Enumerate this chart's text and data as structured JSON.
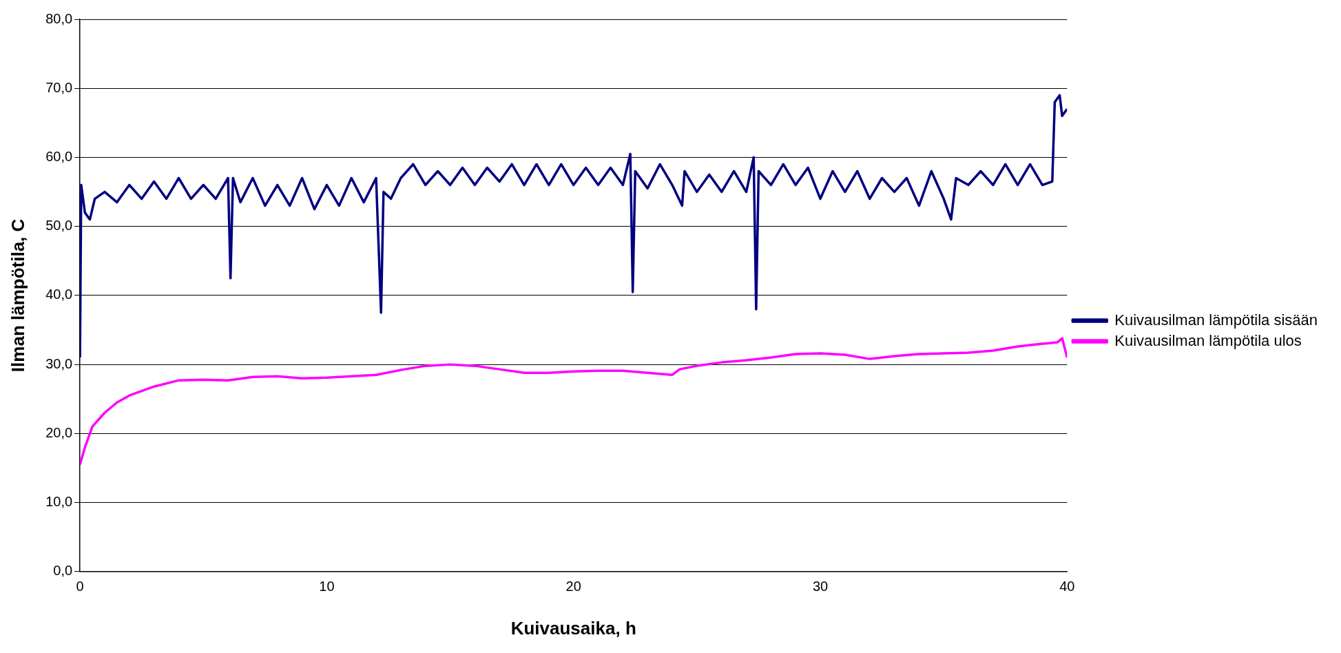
{
  "chart_data": {
    "type": "line",
    "xlabel": "Kuivausaika, h",
    "ylabel": "Ilman lämpötila, C",
    "xlim": [
      0,
      40
    ],
    "xticks": [
      0,
      10,
      20,
      30,
      40
    ],
    "ylim": [
      0,
      80
    ],
    "yticks": [
      {
        "value": 0,
        "label": "0,0"
      },
      {
        "value": 10,
        "label": "10,0"
      },
      {
        "value": 20,
        "label": "20,0"
      },
      {
        "value": 30,
        "label": "30,0"
      },
      {
        "value": 40,
        "label": "40,0"
      },
      {
        "value": 50,
        "label": "50,0"
      },
      {
        "value": 60,
        "label": "60,0"
      },
      {
        "value": 70,
        "label": "70,0"
      },
      {
        "value": 80,
        "label": "80,0"
      }
    ],
    "grid": "y",
    "legend": "right",
    "marker": "none",
    "line_style": "solid",
    "series": [
      {
        "name": "Kuivausilman lämpötila sisään",
        "color": "#000080",
        "x": [
          0,
          0.05,
          0.2,
          0.4,
          0.6,
          1,
          1.5,
          2,
          2.5,
          3,
          3.5,
          4,
          4.5,
          5,
          5.5,
          6,
          6.1,
          6.2,
          6.5,
          7,
          7.5,
          8,
          8.5,
          9,
          9.5,
          10,
          10.5,
          11,
          11.5,
          12,
          12.2,
          12.3,
          12.6,
          13,
          13.5,
          14,
          14.5,
          15,
          15.5,
          16,
          16.5,
          17,
          17.5,
          18,
          18.5,
          19,
          19.5,
          20,
          20.5,
          21,
          21.5,
          22,
          22.3,
          22.4,
          22.5,
          23,
          23.5,
          24,
          24.4,
          24.5,
          25,
          25.5,
          26,
          26.5,
          27,
          27.3,
          27.4,
          27.5,
          28,
          28.5,
          29,
          29.5,
          30,
          30.5,
          31,
          31.5,
          32,
          32.5,
          33,
          33.5,
          34,
          34.5,
          35,
          35.3,
          35.5,
          36,
          36.5,
          37,
          37.5,
          38,
          38.5,
          39,
          39.4,
          39.5,
          39.7,
          39.8,
          40
        ],
        "values": [
          31,
          56,
          52,
          51,
          54,
          55,
          53.5,
          56,
          54,
          56.5,
          54,
          57,
          54,
          56,
          54,
          57,
          42.5,
          57,
          53.5,
          57,
          53,
          56,
          53,
          57,
          52.5,
          56,
          53,
          57,
          53.5,
          57,
          37.5,
          55,
          54,
          57,
          59,
          56,
          58,
          56,
          58.5,
          56,
          58.5,
          56.5,
          59,
          56,
          59,
          56,
          59,
          56,
          58.5,
          56,
          58.5,
          56,
          60.5,
          40.5,
          58,
          55.5,
          59,
          56,
          53,
          58,
          55,
          57.5,
          55,
          58,
          55,
          60,
          38,
          58,
          56,
          59,
          56,
          58.5,
          54,
          58,
          55,
          58,
          54,
          57,
          55,
          57,
          53,
          58,
          54,
          51,
          57,
          56,
          58,
          56,
          59,
          56,
          59,
          56,
          56.5,
          68,
          69,
          66,
          67
        ]
      },
      {
        "name": "Kuivausilman lämpötila ulos",
        "color": "#ff00ff",
        "x": [
          0,
          0.2,
          0.5,
          1,
          1.5,
          2,
          3,
          4,
          5,
          6,
          7,
          8,
          9,
          10,
          11,
          12,
          13,
          14,
          15,
          16,
          17,
          18,
          19,
          20,
          21,
          22,
          23,
          24,
          24.3,
          25,
          26,
          27,
          28,
          29,
          30,
          31,
          32,
          33,
          34,
          35,
          36,
          37,
          38,
          39,
          39.6,
          39.8,
          40
        ],
        "values": [
          15.5,
          18,
          21,
          23,
          24.5,
          25.5,
          26.8,
          27.7,
          27.8,
          27.7,
          28.2,
          28.3,
          28,
          28.1,
          28.3,
          28.5,
          29.2,
          29.8,
          30,
          29.8,
          29.3,
          28.8,
          28.8,
          29,
          29.1,
          29.1,
          28.8,
          28.5,
          29.3,
          29.8,
          30.3,
          30.6,
          31,
          31.5,
          31.6,
          31.4,
          30.8,
          31.2,
          31.5,
          31.6,
          31.7,
          32,
          32.6,
          33,
          33.2,
          33.8,
          31
        ]
      }
    ]
  }
}
